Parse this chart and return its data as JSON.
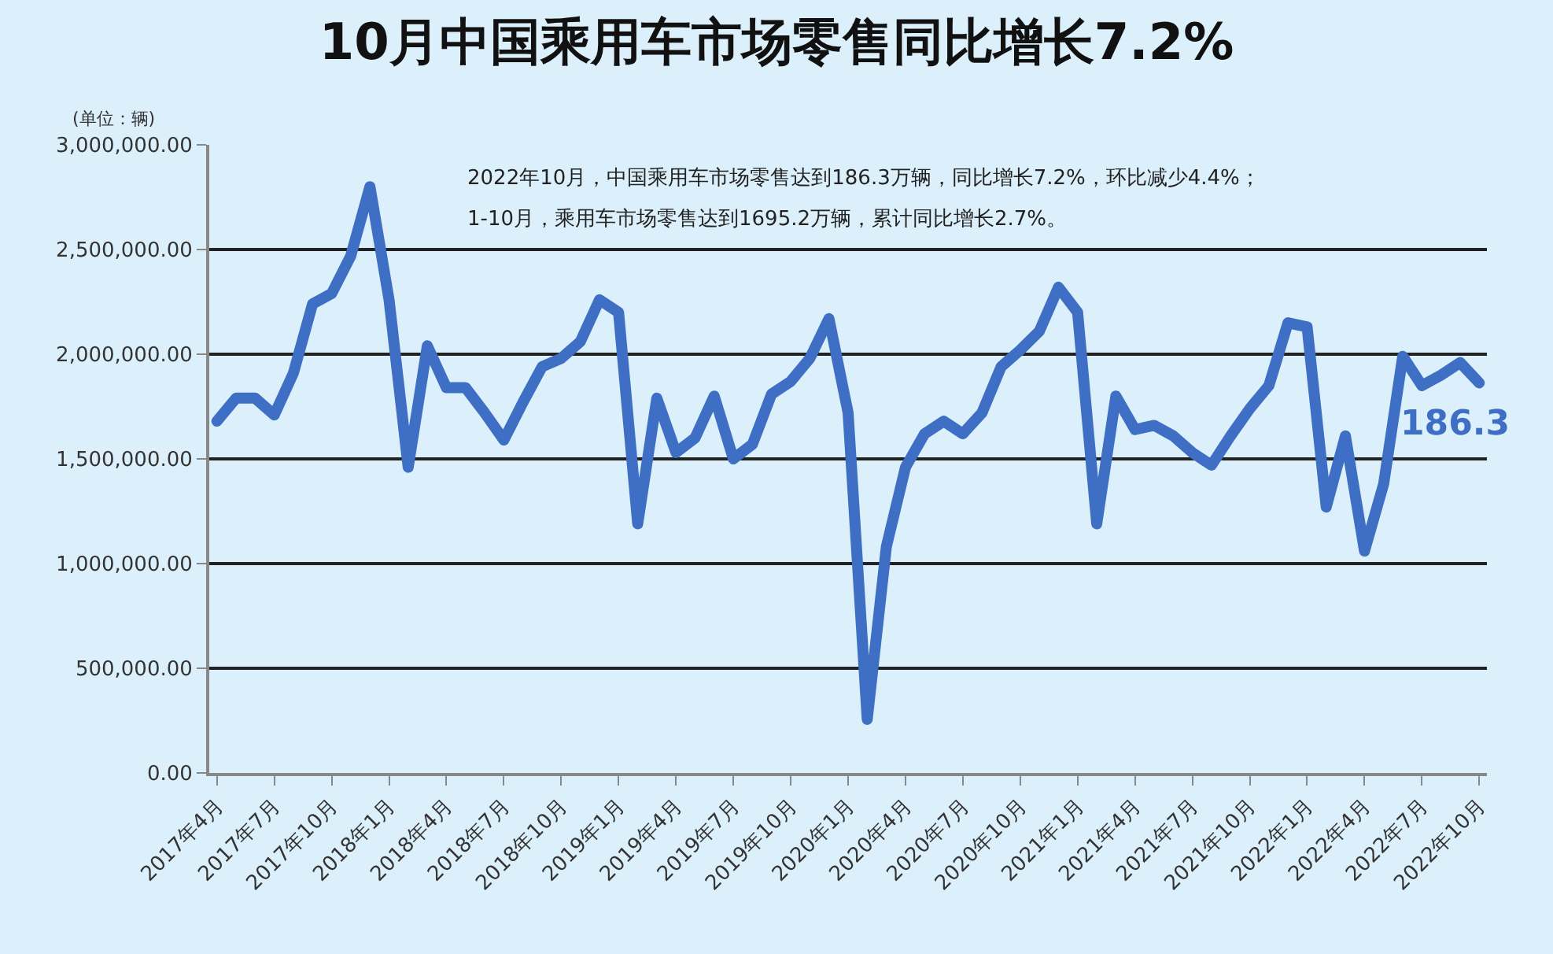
{
  "chart_data": {
    "type": "line",
    "title": "10月中国乘用车市场零售同比增长7.2%",
    "ylabel": "(单位：辆)",
    "annotations": [
      "2022年10月，中国乘用车市场零售达到186.3万辆，同比增长7.2%，环比减少4.4%；",
      "1-10月，乘用车市场零售达到1695.2万辆，累计同比增长2.7%。",
      {
        "text": "186.3",
        "x": "2022年10月",
        "y": 1863000
      }
    ],
    "categories": [
      "2017年4月",
      null,
      null,
      "2017年7月",
      null,
      null,
      "2017年10月",
      null,
      null,
      "2018年1月",
      null,
      null,
      "2018年4月",
      null,
      null,
      "2018年7月",
      null,
      null,
      "2018年10月",
      null,
      null,
      "2019年1月",
      null,
      null,
      "2019年4月",
      null,
      null,
      "2019年7月",
      null,
      null,
      "2019年10月",
      null,
      null,
      "2020年1月",
      null,
      null,
      "2020年4月",
      null,
      null,
      "2020年7月",
      null,
      null,
      "2020年10月",
      null,
      null,
      "2021年1月",
      null,
      null,
      "2021年4月",
      null,
      null,
      "2021年7月",
      null,
      null,
      "2021年10月",
      null,
      null,
      "2022年1月",
      null,
      null,
      "2022年4月",
      null,
      null,
      "2022年7月",
      null,
      null,
      "2022年10月"
    ],
    "series": [
      {
        "color": "#3f6fc4",
        "values": [
          1680000,
          1790000,
          1790000,
          1710000,
          1910000,
          2240000,
          2290000,
          2470000,
          2800000,
          2260000,
          1460000,
          2040000,
          1840000,
          1840000,
          1720000,
          1590000,
          1770000,
          1940000,
          1980000,
          2060000,
          2260000,
          2200000,
          1190000,
          1790000,
          1530000,
          1600000,
          1800000,
          1500000,
          1570000,
          1810000,
          1870000,
          1980000,
          2170000,
          1720000,
          256000,
          1080000,
          1460000,
          1620000,
          1680000,
          1620000,
          1720000,
          1940000,
          2020000,
          2110000,
          2320000,
          2200000,
          1190000,
          1800000,
          1640000,
          1660000,
          1610000,
          1530000,
          1470000,
          1610000,
          1740000,
          1850000,
          2150000,
          2130000,
          1270000,
          1610000,
          1060000,
          1380000,
          1990000,
          1850000,
          1900000,
          1960000,
          1863000
        ]
      }
    ],
    "ylim": [
      0,
      3000000
    ],
    "yticks": [
      {
        "value": 0,
        "label": "0.00"
      },
      {
        "value": 500000,
        "label": "500,000.00"
      },
      {
        "value": 1000000,
        "label": "1,000,000.00"
      },
      {
        "value": 1500000,
        "label": "1,500,000.00"
      },
      {
        "value": 2000000,
        "label": "2,000,000.00"
      },
      {
        "value": 2500000,
        "label": "2,500,000.00"
      },
      {
        "value": 3000000,
        "label": "3,000,000.00"
      }
    ],
    "grid": "y",
    "legend": false,
    "line_style": "solid"
  }
}
